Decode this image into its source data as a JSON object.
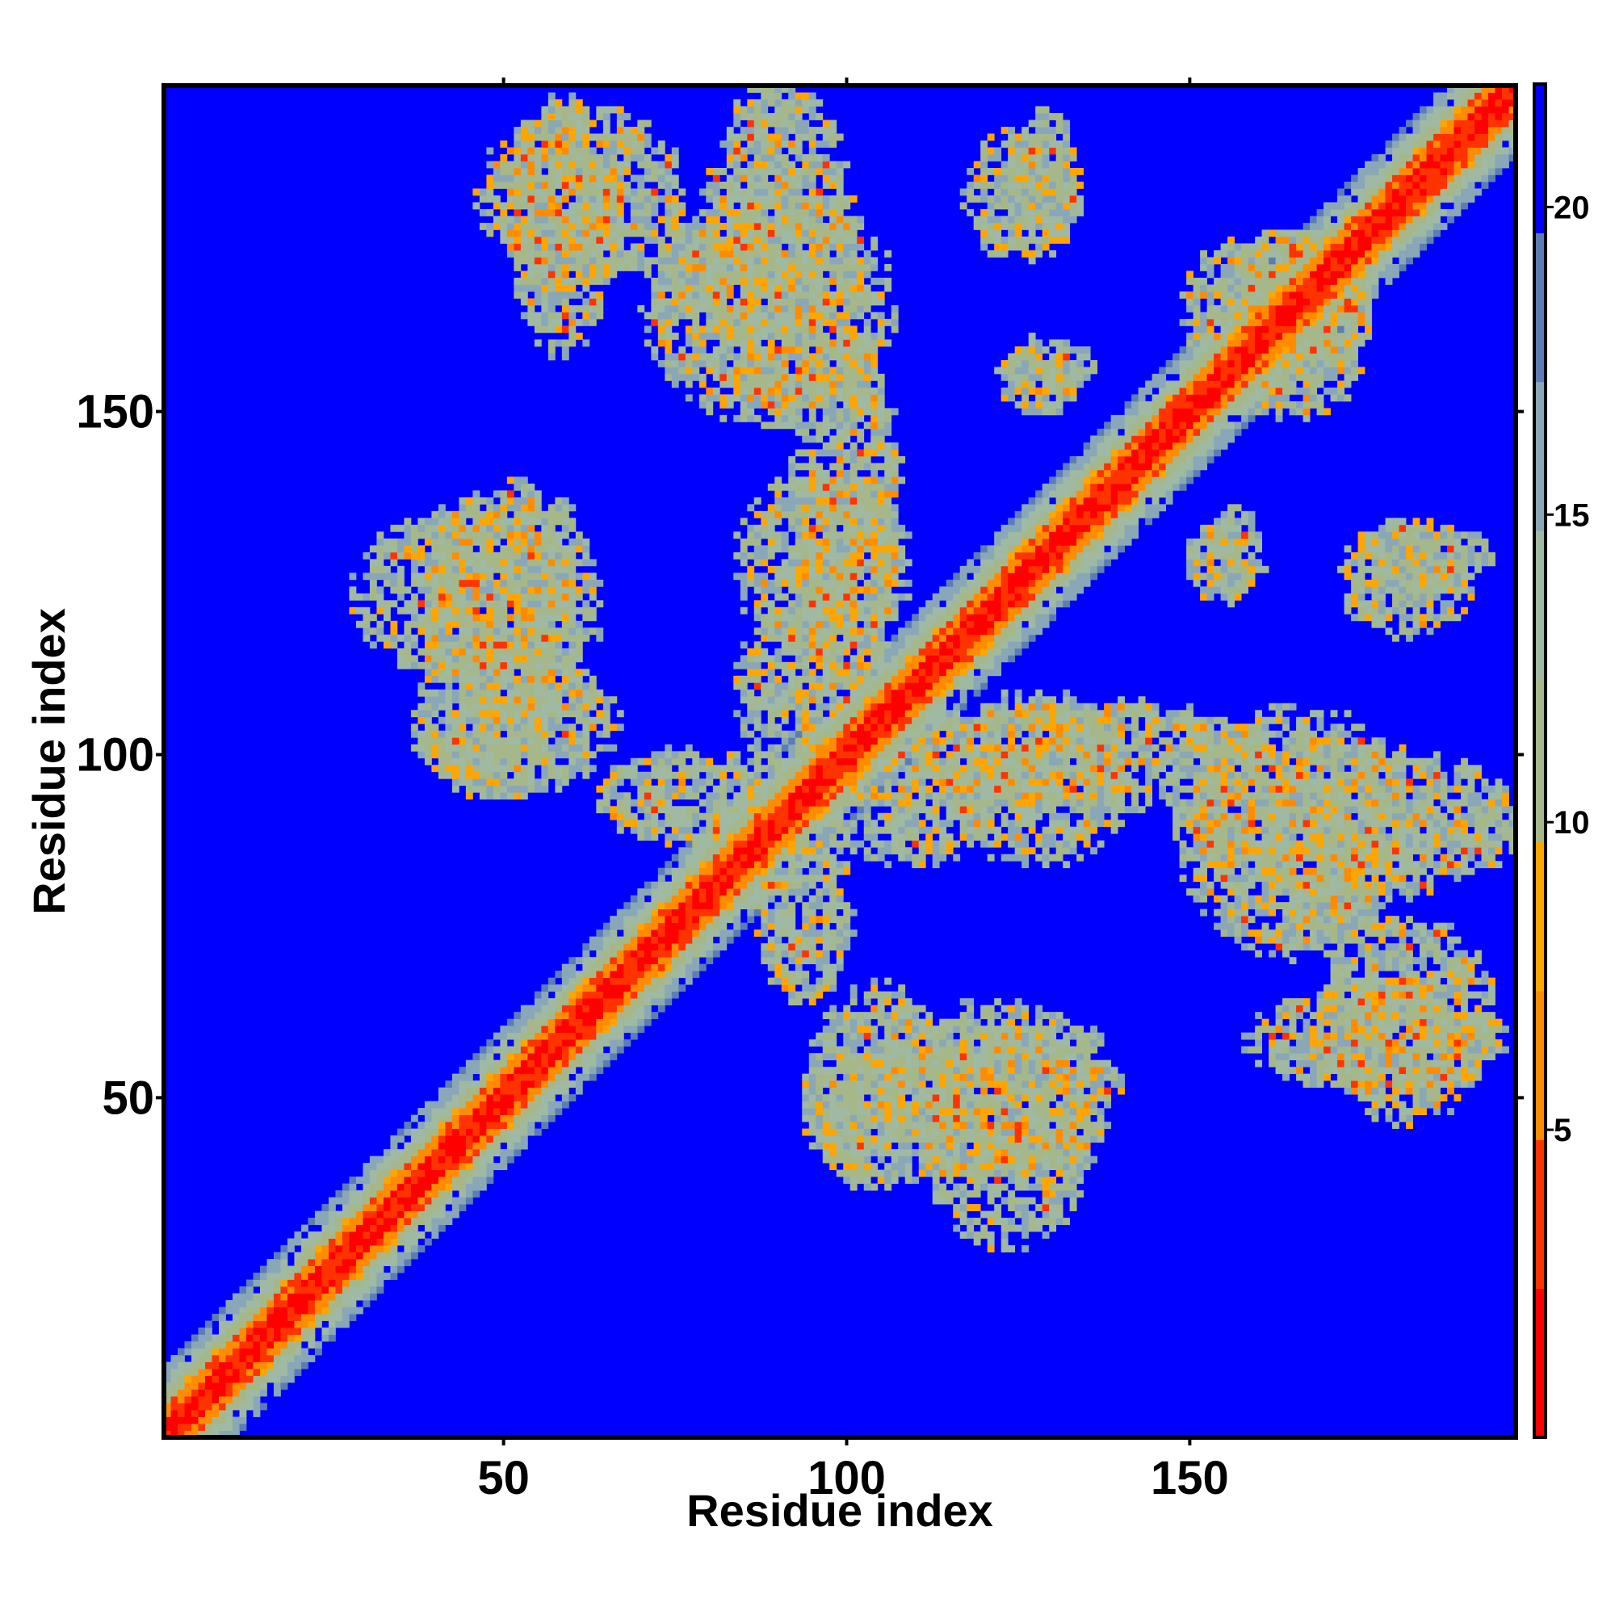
{
  "chart_data": {
    "type": "heatmap",
    "title": "",
    "xlabel": "Residue index",
    "ylabel": "Residue index",
    "n_residues": 197,
    "xlim": [
      1,
      197
    ],
    "ylim": [
      1,
      197
    ],
    "x_ticks": [
      50,
      100,
      150
    ],
    "x_tick_labels": [
      "50",
      "100",
      "150"
    ],
    "y_ticks": [
      50,
      100,
      150
    ],
    "y_tick_labels": [
      "50",
      "100",
      "150"
    ],
    "colorbar": {
      "range": [
        0,
        22
      ],
      "ticks": [
        5,
        10,
        15,
        20
      ],
      "tick_labels": [
        "5",
        "10",
        "15",
        "20"
      ],
      "position": "right",
      "colors": [
        "#ff0000",
        "#ff3300",
        "#ff8c00",
        "#ffa500",
        "#a6b88a",
        "#9fb9a2",
        "#8aa7b8",
        "#5c7db4",
        "#0000ff"
      ]
    },
    "grid": false,
    "background_color": "#0000ff",
    "diagonal_band": {
      "core_value": 3,
      "halfwidth_residues": 10
    },
    "contact_blobs": [
      {
        "x": [
          52,
          65
        ],
        "y": [
          160,
          194
        ],
        "strength": "medium"
      },
      {
        "x": [
          80,
          100
        ],
        "y": [
          150,
          197
        ],
        "strength": "medium"
      },
      {
        "x": [
          98,
          120
        ],
        "y": [
          85,
          100
        ],
        "strength": "medium"
      },
      {
        "x": [
          65,
          88
        ],
        "y": [
          88,
          100
        ],
        "strength": "low"
      },
      {
        "x": [
          93,
          107
        ],
        "y": [
          110,
          160
        ],
        "strength": "medium"
      },
      {
        "x": [
          125,
          133
        ],
        "y": [
          175,
          193
        ],
        "strength": "low"
      },
      {
        "x": [
          40,
          63
        ],
        "y": [
          107,
          138
        ],
        "strength": "medium"
      },
      {
        "x": [
          40,
          55
        ],
        "y": [
          95,
          108
        ],
        "strength": "low"
      },
      {
        "x": [
          115,
          140
        ],
        "y": [
          85,
          108
        ],
        "strength": "medium"
      },
      {
        "x": [
          150,
          182
        ],
        "y": [
          72,
          105
        ],
        "strength": "medium"
      },
      {
        "x": [
          170,
          193
        ],
        "y": [
          48,
          75
        ],
        "strength": "medium"
      },
      {
        "x": [
          112,
          135
        ],
        "y": [
          30,
          60
        ],
        "strength": "medium"
      },
      {
        "x": [
          95,
          115
        ],
        "y": [
          38,
          65
        ],
        "strength": "low"
      },
      {
        "x": [
          173,
          190
        ],
        "y": [
          118,
          133
        ],
        "strength": "low"
      },
      {
        "x": [
          150,
          160
        ],
        "y": [
          123,
          133
        ],
        "strength": "low"
      },
      {
        "x": [
          125,
          135
        ],
        "y": [
          153,
          160
        ],
        "strength": "low"
      },
      {
        "x": [
          155,
          175
        ],
        "y": [
          150,
          175
        ],
        "strength": "medium"
      }
    ]
  }
}
